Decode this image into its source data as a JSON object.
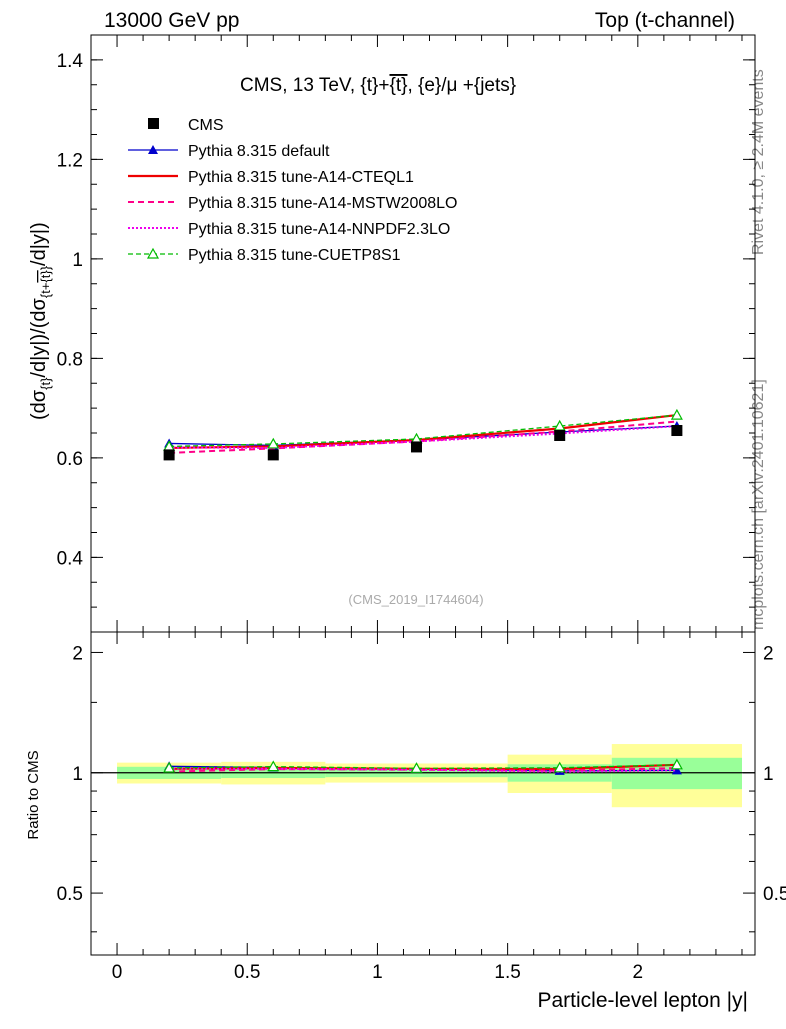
{
  "header": {
    "left": "13000 GeV pp",
    "right": "Top (t-channel)"
  },
  "side_labels": {
    "rivet": "Rivet 4.1.0, ≥ 2.4M events",
    "mcplots": "mcplots.cern.ch [arXiv:2401.10621]"
  },
  "colors": {
    "data": "#000000",
    "default": "#0000cc",
    "cteql1": "#ee0000",
    "mstw": "#ff0088",
    "nnpdf": "#ee00ee",
    "cuetp": "#00bb00",
    "band_inner": "#99ff99",
    "band_outer": "#ffff99"
  },
  "chart_data": [
    {
      "panel": "main",
      "type": "line",
      "title": "CMS, 13 TeV, {t}+{t̄}, {e}/μ +{jets}",
      "title_parts": {
        "pre": "CMS, 13 TeV, {t}+",
        "tbar": "{t}",
        "post": ", {e}/μ +{jets}"
      },
      "ylabel": "(dσ_{t}/d|y|)/(dσ_{t+t̄}/d|y|)",
      "ylabel_parts": {
        "a": "(dσ",
        "sub1": "{t}",
        "b": "/d|y|)/(dσ",
        "sub2": "{t+",
        "sub2bar": "{t}",
        "sub2end": "}",
        "c": "/d|y|)"
      },
      "watermark": "(CMS_2019_I1744604)",
      "xlim": [
        -0.1,
        2.45
      ],
      "ylim": [
        0.25,
        1.45
      ],
      "yticks": [
        0.4,
        0.6,
        0.8,
        1,
        1.2,
        1.4
      ],
      "ytick_labels": [
        "0.4",
        "0.6",
        "0.8",
        "1",
        "1.2",
        "1.4"
      ],
      "x": [
        0.2,
        0.6,
        1.15,
        1.7,
        2.15
      ],
      "data": {
        "name": "CMS",
        "y": [
          0.606,
          0.606,
          0.622,
          0.645,
          0.655
        ],
        "xerr": [
          0.2,
          0.2,
          0.35,
          0.2,
          0.25
        ]
      },
      "series": [
        {
          "key": "default",
          "name": "Pythia 8.315 default",
          "y": [
            0.629,
            0.625,
            0.636,
            0.652,
            0.664
          ],
          "dash": "",
          "marker": "filled-triangle",
          "width": 1.3
        },
        {
          "key": "cteql1",
          "name": "Pythia 8.315 tune-A14-CTEQL1",
          "y": [
            0.62,
            0.623,
            0.636,
            0.659,
            0.686
          ],
          "dash": "",
          "marker": "",
          "width": 2.2
        },
        {
          "key": "mstw",
          "name": "Pythia 8.315 tune-A14-MSTW2008LO",
          "y": [
            0.61,
            0.619,
            0.633,
            0.653,
            0.673
          ],
          "dash": "6,4",
          "marker": "",
          "width": 2
        },
        {
          "key": "nnpdf",
          "name": "Pythia 8.315 tune-A14-NNPDF2.3LO",
          "y": [
            0.621,
            0.62,
            0.633,
            0.649,
            0.664
          ],
          "dash": "2,2",
          "marker": "",
          "width": 2
        },
        {
          "key": "cuetp",
          "name": "Pythia 8.315 tune-CUETP8S1",
          "y": [
            0.623,
            0.628,
            0.638,
            0.664,
            0.686
          ],
          "dash": "5,3",
          "marker": "open-triangle",
          "width": 1.3
        }
      ]
    },
    {
      "panel": "ratio",
      "type": "line",
      "ylabel": "Ratio to CMS",
      "xlabel": "Particle-level lepton |y|",
      "xlim": [
        -0.1,
        2.45
      ],
      "ylim": [
        0.35,
        2.25
      ],
      "yticks": [
        0.5,
        1,
        2
      ],
      "ytick_labels": [
        "0.5",
        "1",
        "2"
      ],
      "xticks": [
        0,
        0.5,
        1,
        1.5,
        2
      ],
      "xtick_labels": [
        "0",
        "0.5",
        "1",
        "1.5",
        "2"
      ],
      "bins": [
        [
          0.0,
          0.4
        ],
        [
          0.4,
          0.8
        ],
        [
          0.8,
          1.5
        ],
        [
          1.5,
          1.9
        ],
        [
          1.9,
          2.4
        ]
      ],
      "band_inner": [
        [
          0.965,
          1.035
        ],
        [
          0.97,
          1.035
        ],
        [
          0.975,
          1.025
        ],
        [
          0.95,
          1.05
        ],
        [
          0.91,
          1.09
        ]
      ],
      "band_outer": [
        [
          0.94,
          1.06
        ],
        [
          0.935,
          1.065
        ],
        [
          0.945,
          1.055
        ],
        [
          0.89,
          1.11
        ],
        [
          0.82,
          1.18
        ]
      ],
      "x": [
        0.2,
        0.6,
        1.15,
        1.7,
        2.15
      ],
      "series": [
        {
          "key": "default",
          "y": [
            1.038,
            1.031,
            1.023,
            1.011,
            1.014
          ],
          "dash": "",
          "marker": "filled-triangle",
          "width": 1.3
        },
        {
          "key": "cteql1",
          "y": [
            1.023,
            1.028,
            1.023,
            1.022,
            1.047
          ],
          "dash": "",
          "marker": "",
          "width": 2.2
        },
        {
          "key": "mstw",
          "y": [
            1.007,
            1.021,
            1.018,
            1.012,
            1.027
          ],
          "dash": "6,4",
          "marker": "",
          "width": 2
        },
        {
          "key": "nnpdf",
          "y": [
            1.025,
            1.023,
            1.018,
            1.006,
            1.014
          ],
          "dash": "2,2",
          "marker": "",
          "width": 2
        },
        {
          "key": "cuetp",
          "y": [
            1.028,
            1.036,
            1.026,
            1.029,
            1.047
          ],
          "dash": "5,3",
          "marker": "open-triangle",
          "width": 1.3
        }
      ]
    }
  ]
}
